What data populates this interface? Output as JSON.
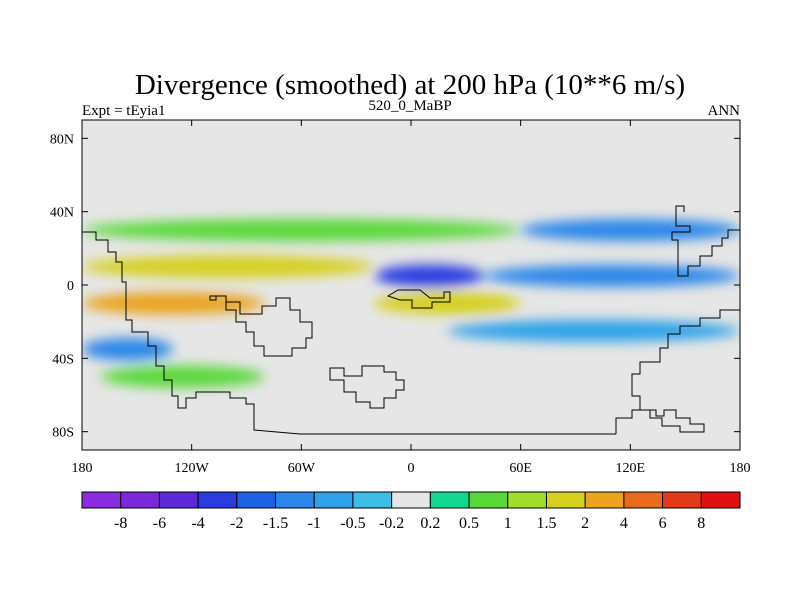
{
  "chart_data": {
    "type": "heatmap",
    "title": "Divergence (smoothed) at 200 hPa (10**6 m/s)",
    "subtitle_left": "Expt = tEyia1",
    "subtitle_center": "520_0_MaBP",
    "subtitle_right": "ANN",
    "x_axis": {
      "range": [
        -180,
        180
      ],
      "ticks": [
        -180,
        -120,
        -60,
        0,
        60,
        120,
        180
      ],
      "tick_labels": [
        "180",
        "120W",
        "60W",
        "0",
        "60E",
        "120E",
        "180"
      ]
    },
    "y_axis": {
      "range": [
        -90,
        90
      ],
      "ticks": [
        80,
        40,
        0,
        -40,
        -80
      ],
      "tick_labels": [
        "80N",
        "40N",
        "0",
        "40S",
        "80S"
      ]
    },
    "colorbar": {
      "levels": [
        "-8",
        "-6",
        "-4",
        "-2",
        "-1.5",
        "-1",
        "-0.5",
        "-0.2",
        "0.2",
        "0.5",
        "1",
        "1.5",
        "2",
        "4",
        "6",
        "8"
      ],
      "colors": [
        "#8a2be2",
        "#7a28d8",
        "#5a2ad8",
        "#2a3ce0",
        "#1e60e6",
        "#2a86e8",
        "#2ea2e8",
        "#3cbee8",
        "#e6e6e6",
        "#10d890",
        "#5ad83a",
        "#a0dc2a",
        "#d6d01e",
        "#eaa31a",
        "#e86a1a",
        "#e23a18",
        "#e01010"
      ]
    },
    "bands": [
      {
        "lat": 30,
        "lon_start": -180,
        "lon_end": 60,
        "value": 0.7
      },
      {
        "lat": 30,
        "lon_start": 60,
        "lon_end": 180,
        "value": -1.2
      },
      {
        "lat": 10,
        "lon_start": -180,
        "lon_end": -20,
        "value": 1.6
      },
      {
        "lat": 5,
        "lon_start": -20,
        "lon_end": 40,
        "value": -3.0
      },
      {
        "lat": 5,
        "lon_start": 40,
        "lon_end": 180,
        "value": -1.0
      },
      {
        "lat": -10,
        "lon_start": -180,
        "lon_end": -80,
        "value": 2.2
      },
      {
        "lat": -10,
        "lon_start": -20,
        "lon_end": 60,
        "value": 1.8
      },
      {
        "lat": -25,
        "lon_start": 20,
        "lon_end": 180,
        "value": -0.8
      },
      {
        "lat": -35,
        "lon_start": -180,
        "lon_end": -130,
        "value": -1.0
      },
      {
        "lat": -50,
        "lon_start": -170,
        "lon_end": -80,
        "value": 0.6
      }
    ]
  }
}
